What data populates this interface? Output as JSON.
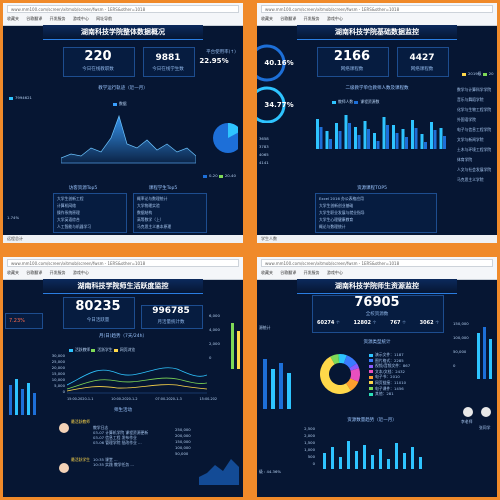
{
  "browser": {
    "address": "www.mm100.com/screen/xitmob/screen/fwsm - 1ERS&other=1018",
    "tabs": [
      "收藏夹",
      "谷歌翻译",
      "开发服务",
      "游戏中心",
      "网址导航",
      "谷歌翻译",
      "网银"
    ],
    "status_right": "100%"
  },
  "p1": {
    "title": "湖南科技学院整体数据概况",
    "online_count": "220",
    "online_label": "今日在线教职数",
    "staff_count": "9881",
    "staff_label": "今日在线学生数",
    "ratio_label": "平台使用率(↑)",
    "ratio_value": "22.95",
    "ratio_unit": "%",
    "left_value": "7994621",
    "chart_title": "教学运行轨迹（近一月）",
    "chart_legend": "数据",
    "resource_top": "访客资源Top5",
    "course_top": "课程学生Top5",
    "left_bottom": "1.74%",
    "pie_legend_1": "0-20",
    "pie_legend_2": "20-40",
    "right_nums": [
      "4585",
      "3658",
      "3783",
      "4065",
      "4141"
    ],
    "rows_left": [
      "大学生创新工程",
      "计算机网络",
      "操作系统原理",
      "大学英语综合",
      "人工智能与机器学习"
    ],
    "rows_right": [
      "概率论与数理统计",
      "大学物理实验",
      "数据结构",
      "高等数学（上）",
      "马克思主义基本原理"
    ],
    "status": "远程总计"
  },
  "p2": {
    "title": "湖南科技学院基础数据监控",
    "pct_top": "40.16%",
    "pct_bottom": "34.77%",
    "count_main": "2166",
    "count_main_label": "网络课程数",
    "count_side": "4427",
    "count_side_label": "网络课程数",
    "chart_title": "二级教学单位教师人数及课程数",
    "legend_a": "教师人数",
    "legend_b": "课程资源数",
    "year_a": "2019级",
    "year_b": "20",
    "left_nums": [
      "3658",
      "3783",
      "4065",
      "4141"
    ],
    "top_title": "资源课程TOP5",
    "rows": [
      "Excel 2016 办公表格应用",
      "大学生创新创业基础",
      "大学生职业发展与就业指导",
      "大学生心理健康教育",
      "概论与数理统计"
    ],
    "right_list": [
      "数学与计算科学学院",
      "音乐与舞蹈学院",
      "化学与生物工程学院",
      "外国语学院",
      "电子与信息工程学院",
      "文学与新闻学院",
      "土木与环境工程学院",
      "体育学院",
      "人文与社会发展学院",
      "马克思主义学院"
    ],
    "status": "学生人数"
  },
  "p3": {
    "title": "湖南科技学院师生活跃度监控",
    "left_pct": "7.23%",
    "active_count": "80235",
    "active_label": "今日活跃量",
    "total_count": "996785",
    "total_label": "月活量统计数",
    "chart_title": "月(日)趋势（7天/24h）",
    "legend": [
      "活跃教师",
      "活跃学生",
      "网页浏览"
    ],
    "yticks": [
      "30,000",
      "25,000",
      "20,000",
      "15,000",
      "10,000",
      "5,000",
      "0"
    ],
    "xticks": [
      "15:00-2020-1-1",
      "10:00-2020-1-2",
      "07:00-2020-1-3",
      "15:00-202"
    ],
    "right_ticks": [
      "6,000",
      "4,000",
      "2,000",
      "0"
    ],
    "sub_title": "师生活动",
    "teacher_label": "最活跃教师",
    "student_label": "最活跃学生",
    "feed": [
      "教学日志",
      "03-07 计算机学院 课程资源更新",
      "03-07 信息工程 发布作业",
      "03-06 管理学院 批改作业 ...",
      "10:35 课堂 ...",
      "10:35 实践 教学任务 ..."
    ],
    "bottom_ticks": [
      "250,000",
      "200,000",
      "150,000",
      "100,000",
      "50,000"
    ]
  },
  "p4": {
    "title": "湖南科技学院师生资源监控",
    "total": "76905",
    "total_label": "全校资源数",
    "sub_values": [
      "60274",
      "12802",
      "767",
      "3062"
    ],
    "sub_units": [
      "个",
      "个",
      "个",
      "个"
    ],
    "left_label": "源统计",
    "donut_title": "资源类型统计",
    "donut_legend": [
      "演示文件：1187",
      "图片格式：2285",
      "视频/音频文件：867",
      "文本/文档：2432",
      "电子书：2010",
      "网页链接：11010",
      "电子课件：1456",
      "其他：281"
    ],
    "right_ticks": [
      "150,000",
      "100,000",
      "50,000",
      "0"
    ],
    "bottom_title": "资源数量趋势（近一月）",
    "bottom_ticks": [
      "2,500",
      "2,000",
      "1,500",
      "1,000",
      "500",
      "0"
    ],
    "bottom_left": "级 : 44.36%",
    "person_a": "李老师",
    "person_b": "张同学",
    "colors": [
      "#2ec4ff",
      "#3a7bff",
      "#8a5cff",
      "#e94fbf",
      "#ff9f2e",
      "#ffd84a",
      "#7ed957",
      "#2de0b8"
    ]
  }
}
